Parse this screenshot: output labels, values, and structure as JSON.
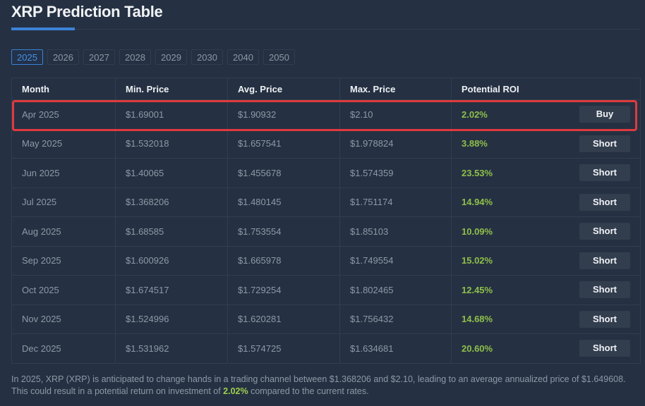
{
  "header": {
    "title": "XRP Prediction Table"
  },
  "year_tabs": [
    {
      "label": "2025",
      "active": true
    },
    {
      "label": "2026",
      "active": false
    },
    {
      "label": "2027",
      "active": false
    },
    {
      "label": "2028",
      "active": false
    },
    {
      "label": "2029",
      "active": false
    },
    {
      "label": "2030",
      "active": false
    },
    {
      "label": "2040",
      "active": false
    },
    {
      "label": "2050",
      "active": false
    }
  ],
  "table": {
    "columns": [
      "Month",
      "Min. Price",
      "Avg. Price",
      "Max. Price",
      "Potential ROI"
    ],
    "rows": [
      {
        "month": "Apr 2025",
        "min": "$1.69001",
        "avg": "$1.90932",
        "max": "$2.10",
        "roi": "2.02%",
        "action": "Buy",
        "highlighted": true
      },
      {
        "month": "May 2025",
        "min": "$1.532018",
        "avg": "$1.657541",
        "max": "$1.978824",
        "roi": "3.88%",
        "action": "Short"
      },
      {
        "month": "Jun 2025",
        "min": "$1.40065",
        "avg": "$1.455678",
        "max": "$1.574359",
        "roi": "23.53%",
        "action": "Short"
      },
      {
        "month": "Jul 2025",
        "min": "$1.368206",
        "avg": "$1.480145",
        "max": "$1.751174",
        "roi": "14.94%",
        "action": "Short"
      },
      {
        "month": "Aug 2025",
        "min": "$1.68585",
        "avg": "$1.753554",
        "max": "$1.85103",
        "roi": "10.09%",
        "action": "Short"
      },
      {
        "month": "Sep 2025",
        "min": "$1.600926",
        "avg": "$1.665978",
        "max": "$1.749554",
        "roi": "15.02%",
        "action": "Short"
      },
      {
        "month": "Oct 2025",
        "min": "$1.674517",
        "avg": "$1.729254",
        "max": "$1.802465",
        "roi": "12.45%",
        "action": "Short"
      },
      {
        "month": "Nov 2025",
        "min": "$1.524996",
        "avg": "$1.620281",
        "max": "$1.756432",
        "roi": "14.68%",
        "action": "Short"
      },
      {
        "month": "Dec 2025",
        "min": "$1.531962",
        "avg": "$1.574725",
        "max": "$1.634681",
        "roi": "20.60%",
        "action": "Short"
      }
    ]
  },
  "summary": {
    "text_before": "In 2025, XRP (XRP) is anticipated to change hands in a trading channel between $1.368206 and $2.10, leading to an average annualized price of $1.649608. This could result in a potential return on investment of ",
    "highlight": "2.02%",
    "text_after": " compared to the current rates."
  },
  "colors": {
    "background": "#253142",
    "accent": "#3b82d6",
    "roi_green": "#8fbf4a",
    "highlight_border": "#e03a3e"
  }
}
